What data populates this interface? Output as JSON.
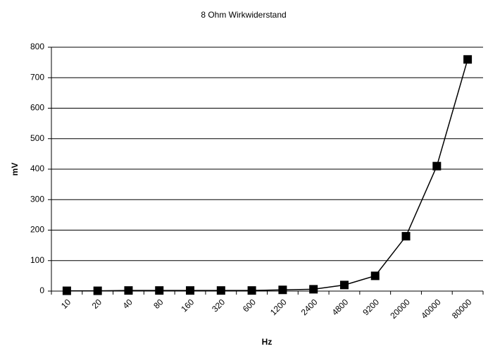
{
  "chart_data": {
    "type": "line",
    "title": "8 Ohm Wirkwiderstand",
    "x_label": "Hz",
    "y_label": "mV",
    "categories": [
      "10",
      "20",
      "40",
      "80",
      "160",
      "320",
      "600",
      "1200",
      "2400",
      "4800",
      "9200",
      "20000",
      "40000",
      "80000"
    ],
    "values": [
      1,
      1,
      2,
      2,
      2,
      2,
      2,
      4,
      6,
      20,
      50,
      180,
      410,
      760
    ],
    "color": "#000000",
    "ylim": [
      0,
      800
    ],
    "yticks": [
      0,
      100,
      200,
      300,
      400,
      500,
      600,
      700,
      800
    ],
    "grid": true
  }
}
